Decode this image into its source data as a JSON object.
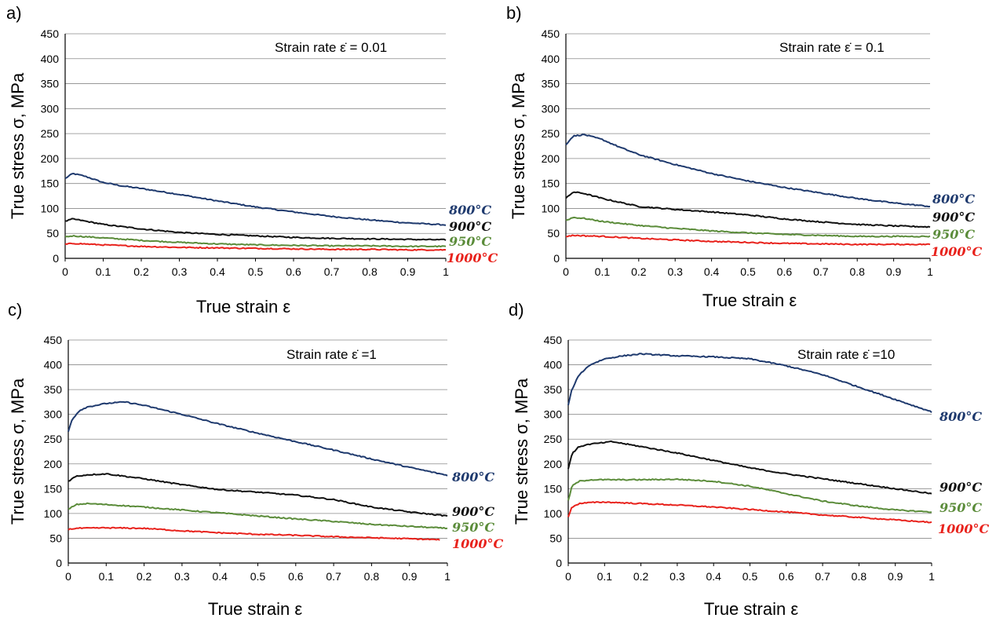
{
  "chart_data": [
    {
      "panel": "a)",
      "type": "line",
      "annotation": "Strain rate ε̇ = 0.01",
      "xlabel": "True strain ε",
      "ylabel": "True stress σ, MPa",
      "xlim": [
        0,
        1
      ],
      "ylim": [
        0,
        450
      ],
      "xticks": [
        "0",
        "0.1",
        "0.2",
        "0.3",
        "0.4",
        "0.5",
        "0.6",
        "0.7",
        "0.8",
        "0.9",
        "1"
      ],
      "yticks": [
        "0",
        "50",
        "100",
        "150",
        "200",
        "250",
        "300",
        "350",
        "400",
        "450"
      ],
      "grid": "horizontal",
      "series": [
        {
          "name": "800°C",
          "color": "#1f3a6e",
          "x": [
            0,
            0.02,
            0.05,
            0.1,
            0.15,
            0.2,
            0.3,
            0.4,
            0.5,
            0.6,
            0.7,
            0.8,
            0.9,
            1.0
          ],
          "y": [
            160,
            170,
            165,
            152,
            145,
            140,
            128,
            115,
            103,
            93,
            84,
            77,
            71,
            67
          ]
        },
        {
          "name": "900°C",
          "color": "#111111",
          "x": [
            0,
            0.02,
            0.05,
            0.1,
            0.2,
            0.3,
            0.4,
            0.5,
            0.6,
            0.7,
            0.8,
            0.9,
            1.0
          ],
          "y": [
            74,
            79,
            75,
            68,
            59,
            52,
            48,
            45,
            42,
            40,
            39,
            38,
            37
          ]
        },
        {
          "name": "950°C",
          "color": "#5b8c3a",
          "x": [
            0,
            0.02,
            0.1,
            0.2,
            0.3,
            0.4,
            0.5,
            0.6,
            0.7,
            0.8,
            0.9,
            1.0
          ],
          "y": [
            43,
            45,
            41,
            36,
            32,
            29,
            27,
            26,
            25,
            25,
            24,
            24
          ]
        },
        {
          "name": "1000°C",
          "color": "#e8221c",
          "x": [
            0,
            0.02,
            0.1,
            0.2,
            0.3,
            0.4,
            0.5,
            0.6,
            0.7,
            0.8,
            0.9,
            1.0
          ],
          "y": [
            28,
            30,
            27,
            24,
            22,
            21,
            20,
            19,
            18,
            18,
            17,
            17
          ]
        }
      ]
    },
    {
      "panel": "b)",
      "type": "line",
      "annotation": "Strain rate ε̇ = 0.1",
      "xlabel": "True strain ε",
      "ylabel": "True stress σ, MPa",
      "xlim": [
        0,
        1
      ],
      "ylim": [
        0,
        450
      ],
      "xticks": [
        "0",
        "0.1",
        "0.2",
        "0.3",
        "0.4",
        "0.5",
        "0.6",
        "0.7",
        "0.8",
        "0.9",
        "1"
      ],
      "yticks": [
        "0",
        "50",
        "100",
        "150",
        "200",
        "250",
        "300",
        "350",
        "400",
        "450"
      ],
      "grid": "horizontal",
      "series": [
        {
          "name": "800°C",
          "color": "#1f3a6e",
          "x": [
            0,
            0.02,
            0.05,
            0.1,
            0.15,
            0.2,
            0.3,
            0.4,
            0.5,
            0.6,
            0.7,
            0.8,
            0.9,
            1.0
          ],
          "y": [
            228,
            245,
            248,
            238,
            222,
            208,
            188,
            170,
            155,
            142,
            131,
            120,
            111,
            104
          ]
        },
        {
          "name": "900°C",
          "color": "#111111",
          "x": [
            0,
            0.02,
            0.05,
            0.1,
            0.2,
            0.3,
            0.4,
            0.5,
            0.6,
            0.7,
            0.8,
            0.9,
            1.0
          ],
          "y": [
            120,
            133,
            130,
            120,
            104,
            98,
            93,
            87,
            79,
            73,
            68,
            65,
            63
          ]
        },
        {
          "name": "950°C",
          "color": "#5b8c3a",
          "x": [
            0,
            0.02,
            0.05,
            0.1,
            0.2,
            0.3,
            0.4,
            0.5,
            0.6,
            0.7,
            0.8,
            0.9,
            1.0
          ],
          "y": [
            76,
            82,
            80,
            74,
            66,
            60,
            55,
            51,
            48,
            46,
            44,
            44,
            44
          ]
        },
        {
          "name": "1000°C",
          "color": "#e8221c",
          "x": [
            0,
            0.02,
            0.1,
            0.2,
            0.3,
            0.4,
            0.5,
            0.6,
            0.7,
            0.8,
            0.9,
            1.0
          ],
          "y": [
            44,
            46,
            44,
            40,
            37,
            34,
            32,
            30,
            29,
            28,
            28,
            28
          ]
        }
      ]
    },
    {
      "panel": "c)",
      "type": "line",
      "annotation": "Strain rate ε̇ =1",
      "xlabel": "True strain ε",
      "ylabel": "True stress σ, MPa",
      "xlim": [
        0,
        1
      ],
      "ylim": [
        0,
        450
      ],
      "xticks": [
        "0",
        "0.1",
        "0.2",
        "0.3",
        "0.4",
        "0.5",
        "0.6",
        "0.7",
        "0.8",
        "0.9",
        "1"
      ],
      "yticks": [
        "0",
        "50",
        "100",
        "150",
        "200",
        "250",
        "300",
        "350",
        "400",
        "450"
      ],
      "grid": "horizontal",
      "series": [
        {
          "name": "800°C",
          "color": "#1f3a6e",
          "x": [
            0,
            0.01,
            0.03,
            0.05,
            0.1,
            0.15,
            0.2,
            0.3,
            0.4,
            0.5,
            0.6,
            0.7,
            0.8,
            0.9,
            1.0
          ],
          "y": [
            265,
            290,
            308,
            315,
            322,
            325,
            318,
            300,
            280,
            262,
            245,
            228,
            210,
            193,
            177
          ]
        },
        {
          "name": "900°C",
          "color": "#111111",
          "x": [
            0,
            0.02,
            0.05,
            0.1,
            0.2,
            0.3,
            0.4,
            0.5,
            0.6,
            0.7,
            0.8,
            0.9,
            1.0
          ],
          "y": [
            165,
            175,
            178,
            180,
            170,
            158,
            148,
            143,
            137,
            128,
            113,
            103,
            95
          ]
        },
        {
          "name": "950°C",
          "color": "#5b8c3a",
          "x": [
            0,
            0.02,
            0.05,
            0.1,
            0.2,
            0.3,
            0.4,
            0.5,
            0.6,
            0.7,
            0.8,
            0.9,
            1.0
          ],
          "y": [
            108,
            118,
            120,
            118,
            113,
            107,
            101,
            95,
            89,
            84,
            78,
            74,
            70
          ]
        },
        {
          "name": "1000°C",
          "color": "#e8221c",
          "x": [
            0,
            0.02,
            0.1,
            0.2,
            0.3,
            0.4,
            0.5,
            0.6,
            0.7,
            0.8,
            0.9,
            0.98
          ],
          "y": [
            68,
            70,
            71,
            70,
            65,
            61,
            58,
            56,
            53,
            51,
            49,
            47
          ]
        }
      ]
    },
    {
      "panel": "d)",
      "type": "line",
      "annotation": "Strain rate ε̇ =10",
      "xlabel": "True strain ε",
      "ylabel": "True stress σ, MPa",
      "xlim": [
        0,
        1
      ],
      "ylim": [
        0,
        450
      ],
      "xticks": [
        "0",
        "0.1",
        "0.2",
        "0.3",
        "0.4",
        "0.5",
        "0.6",
        "0.7",
        "0.8",
        "0.9",
        "1"
      ],
      "yticks": [
        "0",
        "50",
        "100",
        "150",
        "200",
        "250",
        "300",
        "350",
        "400",
        "450"
      ],
      "grid": "horizontal",
      "series": [
        {
          "name": "800°C",
          "color": "#1f3a6e",
          "x": [
            0,
            0.01,
            0.03,
            0.06,
            0.1,
            0.15,
            0.2,
            0.3,
            0.4,
            0.5,
            0.6,
            0.7,
            0.8,
            0.9,
            1.0
          ],
          "y": [
            318,
            350,
            380,
            400,
            412,
            418,
            422,
            418,
            416,
            412,
            398,
            380,
            355,
            330,
            305
          ]
        },
        {
          "name": "900°C",
          "color": "#111111",
          "x": [
            0,
            0.01,
            0.03,
            0.06,
            0.1,
            0.12,
            0.2,
            0.3,
            0.4,
            0.5,
            0.6,
            0.7,
            0.8,
            0.9,
            1.0
          ],
          "y": [
            190,
            220,
            235,
            240,
            243,
            245,
            235,
            222,
            207,
            192,
            180,
            170,
            160,
            150,
            140
          ]
        },
        {
          "name": "950°C",
          "color": "#5b8c3a",
          "x": [
            0,
            0.01,
            0.03,
            0.06,
            0.1,
            0.2,
            0.3,
            0.4,
            0.5,
            0.6,
            0.7,
            0.8,
            0.9,
            1.0
          ],
          "y": [
            125,
            155,
            165,
            168,
            168,
            168,
            169,
            165,
            155,
            140,
            125,
            115,
            107,
            103
          ]
        },
        {
          "name": "1000°C",
          "color": "#e8221c",
          "x": [
            0,
            0.01,
            0.03,
            0.06,
            0.1,
            0.2,
            0.3,
            0.4,
            0.5,
            0.6,
            0.7,
            0.8,
            0.9,
            1.0
          ],
          "y": [
            92,
            113,
            120,
            122,
            123,
            120,
            117,
            113,
            108,
            103,
            97,
            92,
            87,
            82
          ]
        }
      ]
    }
  ]
}
